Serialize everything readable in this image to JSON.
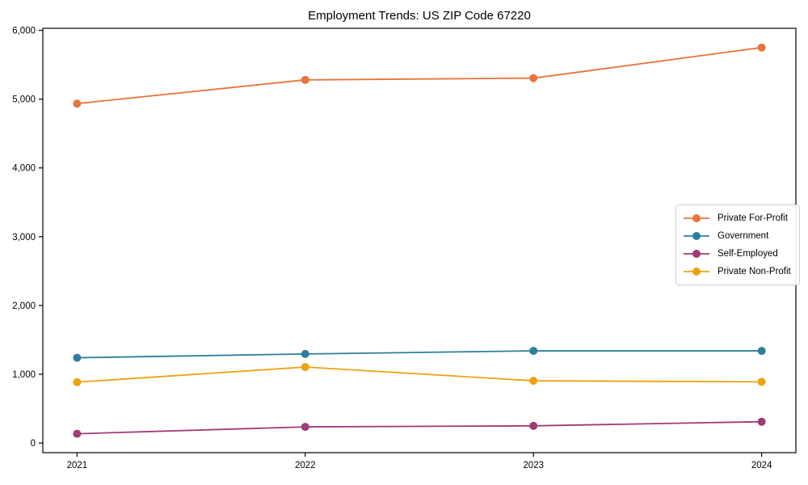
{
  "chart_data": {
    "type": "line",
    "title": "Employment Trends: US ZIP Code 67220",
    "x": [
      2021,
      2022,
      2023,
      2024
    ],
    "x_tick_labels": [
      "2021",
      "2022",
      "2023",
      "2024"
    ],
    "series": [
      {
        "name": "Private For-Profit",
        "color": "#e8743b",
        "values": [
          4935,
          5280,
          5305,
          5750
        ]
      },
      {
        "name": "Government",
        "color": "#2d7f9c",
        "values": [
          1240,
          1295,
          1340,
          1340
        ]
      },
      {
        "name": "Self-Employed",
        "color": "#a13a76",
        "values": [
          135,
          235,
          250,
          310
        ]
      },
      {
        "name": "Private Non-Profit",
        "color": "#eea211",
        "values": [
          885,
          1105,
          905,
          890
        ]
      }
    ],
    "yticks": [
      0,
      1000,
      2000,
      3000,
      4000,
      5000,
      6000
    ],
    "ytick_labels": [
      "0",
      "1,000",
      "2,000",
      "3,000",
      "4,000",
      "5,000",
      "6,000"
    ],
    "ylim": [
      -140,
      6030
    ],
    "xlim": [
      2020.85,
      2024.15
    ],
    "grid": false,
    "legend_position": "center right",
    "axis_color": "#000000",
    "background_color": "#ffffff",
    "marker": "circle",
    "line_width": 1.8,
    "marker_radius": 5
  }
}
